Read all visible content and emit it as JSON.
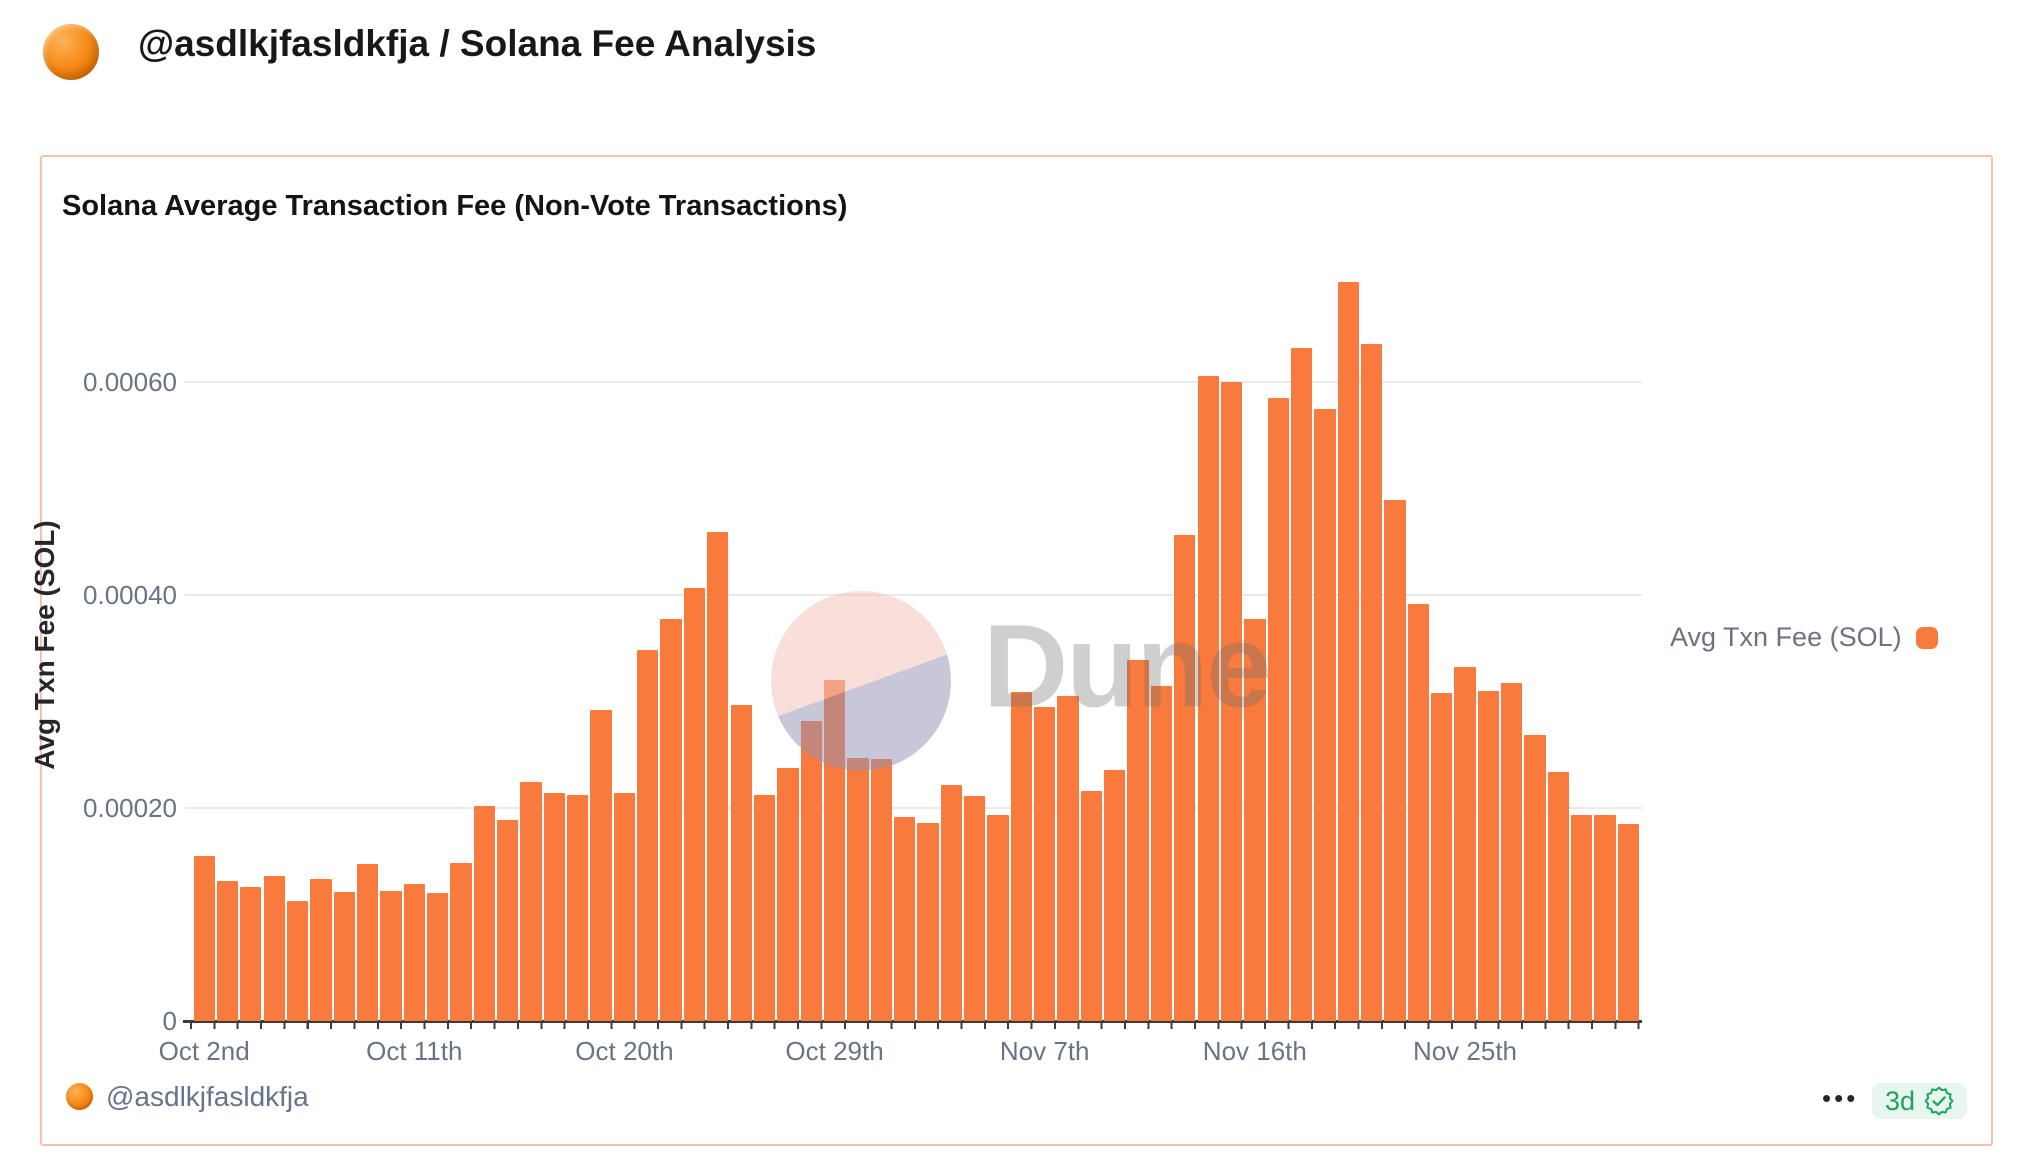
{
  "header": {
    "title": "@asdlkjfasldkfja / Solana Fee Analysis"
  },
  "card": {
    "title": "Solana Average Transaction Fee (Non-Vote Transactions)",
    "footer": {
      "handle": "@asdlkjfasldkfja",
      "menu_dots": "•••",
      "age_badge": "3d"
    }
  },
  "legend": {
    "label": "Avg Txn Fee (SOL)"
  },
  "watermark": {
    "text": "Dune"
  },
  "colors": {
    "bar_orange": "#f87b3d",
    "card_border": "#f6c1a7",
    "axis_text": "#697386",
    "badge_green": "#1ca45c",
    "badge_bg": "#e7f6ee",
    "gridline": "#e9e9ee",
    "watermark_pink": "#f9e4e0",
    "watermark_lavender": "#d6d5e6"
  },
  "chart_data": {
    "type": "bar",
    "title": "Solana Average Transaction Fee (Non-Vote Transactions)",
    "xlabel": "",
    "ylabel": "Avg Txn Fee (SOL)",
    "series_name": "Avg Txn Fee (SOL)",
    "legend_position": "right",
    "grid": true,
    "ylim": [
      0,
      0.0007
    ],
    "y_ticks": [
      {
        "value": 0,
        "label": "0"
      },
      {
        "value": 0.0002,
        "label": "0.00020"
      },
      {
        "value": 0.0004,
        "label": "0.00040"
      },
      {
        "value": 0.0006,
        "label": "0.00060"
      }
    ],
    "x_tick_indices": [
      0,
      9,
      18,
      27,
      36,
      45,
      54
    ],
    "x_tick_labels": [
      "Oct 2nd",
      "Oct 11th",
      "Oct 20th",
      "Oct 29th",
      "Nov 7th",
      "Nov 16th",
      "Nov 25th"
    ],
    "categories": [
      "Oct 2",
      "Oct 3",
      "Oct 4",
      "Oct 5",
      "Oct 6",
      "Oct 7",
      "Oct 8",
      "Oct 9",
      "Oct 10",
      "Oct 11",
      "Oct 12",
      "Oct 13",
      "Oct 14",
      "Oct 15",
      "Oct 16",
      "Oct 17",
      "Oct 18",
      "Oct 19",
      "Oct 20",
      "Oct 21",
      "Oct 22",
      "Oct 23",
      "Oct 24",
      "Oct 25",
      "Oct 26",
      "Oct 27",
      "Oct 28",
      "Oct 29",
      "Oct 30",
      "Oct 31",
      "Nov 1",
      "Nov 2",
      "Nov 3",
      "Nov 4",
      "Nov 5",
      "Nov 6",
      "Nov 7",
      "Nov 8",
      "Nov 9",
      "Nov 10",
      "Nov 11",
      "Nov 12",
      "Nov 13",
      "Nov 14",
      "Nov 15",
      "Nov 16",
      "Nov 17",
      "Nov 18",
      "Nov 19",
      "Nov 20",
      "Nov 21",
      "Nov 22",
      "Nov 23",
      "Nov 24",
      "Nov 25",
      "Nov 26",
      "Nov 27",
      "Nov 28",
      "Nov 29",
      "Nov 30",
      "Dec 1",
      "Dec 2"
    ],
    "values": [
      0.000155,
      0.000131,
      0.000126,
      0.000136,
      0.000113,
      0.000133,
      0.000121,
      0.000147,
      0.000122,
      0.000129,
      0.00012,
      0.000148,
      0.000202,
      0.000189,
      0.000224,
      0.000214,
      0.000212,
      0.000292,
      0.000214,
      0.000348,
      0.000377,
      0.000407,
      0.000459,
      0.000297,
      0.000212,
      0.000238,
      0.000282,
      0.00032,
      0.000247,
      0.000246,
      0.000192,
      0.000186,
      0.000222,
      0.000211,
      0.000193,
      0.000309,
      0.000295,
      0.000305,
      0.000216,
      0.000236,
      0.000339,
      0.000315,
      0.000456,
      0.000606,
      0.0006,
      0.000377,
      0.000585,
      0.000632,
      0.000575,
      0.000694,
      0.000636,
      0.000489,
      0.000392,
      0.000308,
      0.000332,
      0.00031,
      0.000317,
      0.000269,
      0.000234,
      0.000193,
      0.000193,
      0.000185
    ]
  }
}
